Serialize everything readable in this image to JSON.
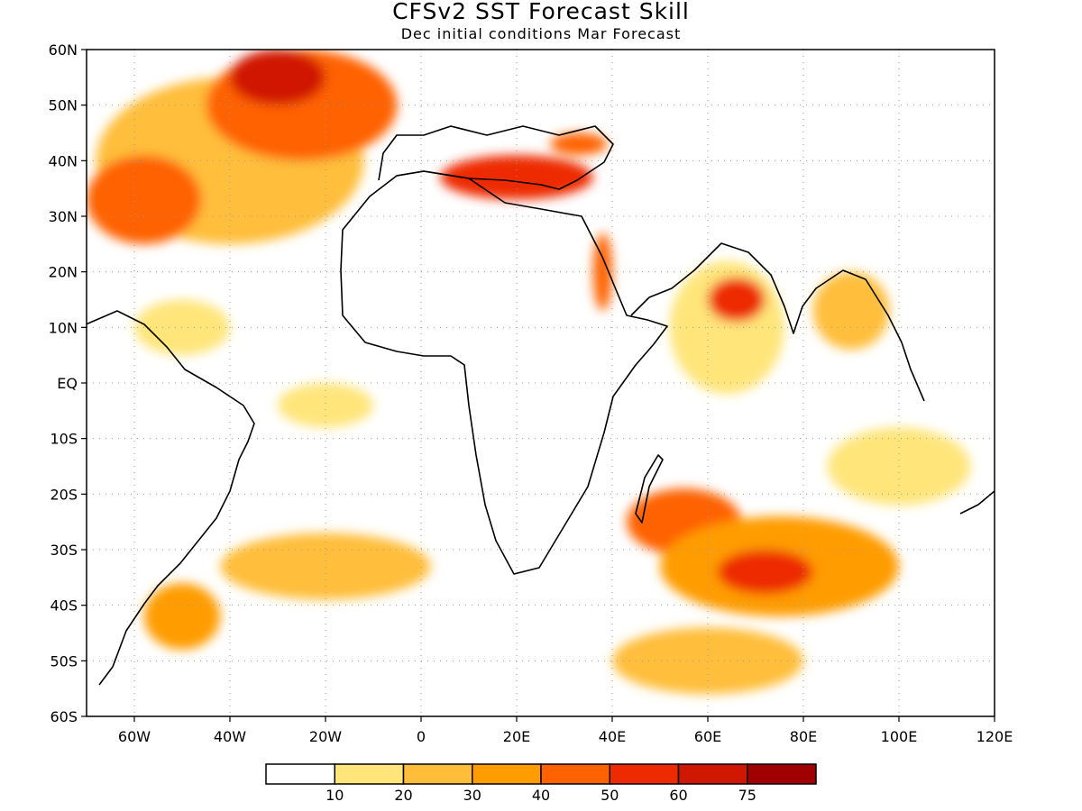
{
  "title": "CFSv2 SST Forecast Skill",
  "subtitle": "Dec initial conditions  Mar Forecast",
  "map": {
    "lon_range": [
      -70,
      120
    ],
    "lat_range": [
      -60,
      60
    ],
    "lat_labels": [
      "60N",
      "50N",
      "40N",
      "30N",
      "20N",
      "10N",
      "EQ",
      "10S",
      "20S",
      "30S",
      "40S",
      "50S",
      "60S"
    ],
    "lon_labels": [
      "60W",
      "40W",
      "20W",
      "0",
      "20E",
      "40E",
      "60E",
      "80E",
      "100E",
      "120E"
    ],
    "grid": true
  },
  "colorbar": {
    "bins": [
      "#ffffff",
      "#ffe57a",
      "#ffbe3a",
      "#ff9c00",
      "#ff6200",
      "#ee2a00",
      "#d01800",
      "#a00000"
    ],
    "labels": [
      "10",
      "20",
      "30",
      "40",
      "50",
      "60",
      "75"
    ]
  },
  "skill_regions": [
    {
      "lon": -40,
      "lat": 40,
      "r_lon": 28,
      "r_lat": 15,
      "level": 2
    },
    {
      "lon": -25,
      "lat": 50,
      "r_lon": 20,
      "r_lat": 10,
      "level": 4
    },
    {
      "lon": -30,
      "lat": 55,
      "r_lon": 10,
      "r_lat": 5,
      "level": 6
    },
    {
      "lon": -58,
      "lat": 33,
      "r_lon": 12,
      "r_lat": 8,
      "level": 4
    },
    {
      "lon": 20,
      "lat": 37,
      "r_lon": 16,
      "r_lat": 4,
      "level": 5
    },
    {
      "lon": 33,
      "lat": 43,
      "r_lon": 6,
      "r_lat": 2,
      "level": 4
    },
    {
      "lon": 38,
      "lat": 20,
      "r_lon": 2,
      "r_lat": 7,
      "level": 4
    },
    {
      "lon": 64,
      "lat": 10,
      "r_lon": 12,
      "r_lat": 12,
      "level": 1
    },
    {
      "lon": 66,
      "lat": 15,
      "r_lon": 6,
      "r_lat": 4,
      "level": 5
    },
    {
      "lon": 90,
      "lat": 13,
      "r_lon": 8,
      "r_lat": 7,
      "level": 2
    },
    {
      "lon": -50,
      "lat": 10,
      "r_lon": 10,
      "r_lat": 5,
      "level": 1
    },
    {
      "lon": -20,
      "lat": -4,
      "r_lon": 10,
      "r_lat": 4,
      "level": 1
    },
    {
      "lon": 55,
      "lat": -25,
      "r_lon": 12,
      "r_lat": 6,
      "level": 4
    },
    {
      "lon": 75,
      "lat": -33,
      "r_lon": 25,
      "r_lat": 9,
      "level": 3
    },
    {
      "lon": 72,
      "lat": -34,
      "r_lon": 10,
      "r_lat": 4,
      "level": 5
    },
    {
      "lon": 60,
      "lat": -50,
      "r_lon": 20,
      "r_lat": 6,
      "level": 2
    },
    {
      "lon": -20,
      "lat": -33,
      "r_lon": 22,
      "r_lat": 6,
      "level": 2
    },
    {
      "lon": -50,
      "lat": -42,
      "r_lon": 8,
      "r_lat": 6,
      "level": 3
    },
    {
      "lon": 100,
      "lat": -15,
      "r_lon": 15,
      "r_lat": 7,
      "level": 1
    }
  ]
}
